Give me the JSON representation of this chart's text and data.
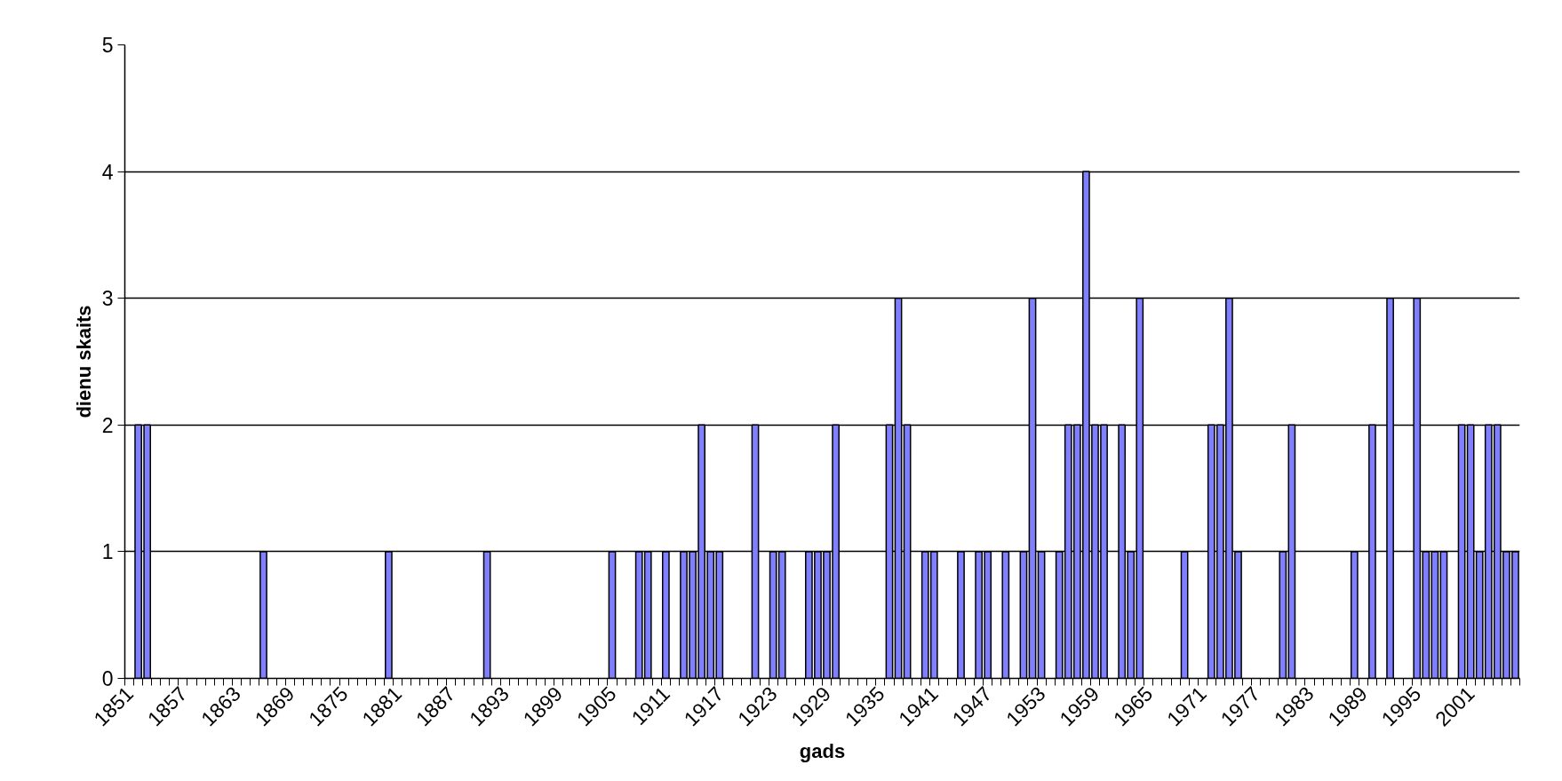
{
  "chart_data": {
    "type": "bar",
    "xlabel": "gads",
    "ylabel": "dienu skaits",
    "categories": [
      "1851",
      null,
      null,
      null,
      null,
      null,
      "1857",
      null,
      null,
      null,
      null,
      null,
      "1863",
      null,
      null,
      null,
      null,
      null,
      "1869",
      null,
      null,
      null,
      null,
      null,
      "1875",
      null,
      null,
      null,
      null,
      null,
      "1881",
      null,
      null,
      null,
      null,
      null,
      "1887",
      null,
      null,
      null,
      null,
      null,
      "1893",
      null,
      null,
      null,
      null,
      null,
      "1899",
      null,
      null,
      null,
      null,
      null,
      "1905",
      null,
      null,
      null,
      null,
      null,
      "1911",
      null,
      null,
      null,
      null,
      null,
      "1917",
      null,
      null,
      null,
      null,
      null,
      "1923",
      null,
      null,
      null,
      null,
      null,
      "1929",
      null,
      null,
      null,
      null,
      null,
      "1935",
      null,
      null,
      null,
      null,
      null,
      "1941",
      null,
      null,
      null,
      null,
      null,
      "1947",
      null,
      null,
      null,
      null,
      null,
      "1953",
      null,
      null,
      null,
      null,
      null,
      "1959",
      null,
      null,
      null,
      null,
      null,
      "1965",
      null,
      null,
      null,
      null,
      null,
      "1971",
      null,
      null,
      null,
      null,
      null,
      "1977",
      null,
      null,
      null,
      null,
      null,
      "1983",
      null,
      null,
      null,
      null,
      null,
      "1989",
      null,
      null,
      null,
      null,
      null,
      "1995",
      null,
      null,
      null,
      null,
      null,
      "2001",
      null,
      null,
      null,
      null,
      null
    ],
    "values": [
      0,
      2,
      2,
      0,
      0,
      0,
      0,
      0,
      0,
      0,
      0,
      0,
      0,
      0,
      0,
      1,
      0,
      0,
      0,
      0,
      0,
      0,
      0,
      0,
      0,
      0,
      0,
      0,
      0,
      1,
      0,
      0,
      0,
      0,
      0,
      0,
      0,
      0,
      0,
      0,
      1,
      0,
      0,
      0,
      0,
      0,
      0,
      0,
      0,
      0,
      0,
      0,
      0,
      0,
      1,
      0,
      0,
      1,
      1,
      0,
      1,
      0,
      1,
      1,
      2,
      1,
      1,
      0,
      0,
      0,
      2,
      0,
      1,
      1,
      0,
      0,
      1,
      1,
      1,
      2,
      0,
      0,
      0,
      0,
      0,
      2,
      3,
      2,
      0,
      1,
      1,
      0,
      0,
      1,
      0,
      1,
      1,
      0,
      1,
      0,
      1,
      3,
      1,
      0,
      1,
      2,
      2,
      4,
      2,
      2,
      0,
      2,
      1,
      3,
      0,
      0,
      0,
      0,
      1,
      0,
      0,
      2,
      2,
      3,
      1,
      0,
      0,
      0,
      0,
      1,
      2,
      0,
      0,
      0,
      0,
      0,
      0,
      1,
      0,
      2,
      0,
      3,
      0,
      0,
      3,
      1,
      1,
      1,
      0,
      2,
      2,
      1,
      2,
      2,
      1,
      1
    ],
    "color": "#8080ff",
    "ylim": [
      0,
      5
    ],
    "yticks": [
      0,
      1,
      2,
      3,
      4,
      5
    ],
    "grid": "y"
  }
}
